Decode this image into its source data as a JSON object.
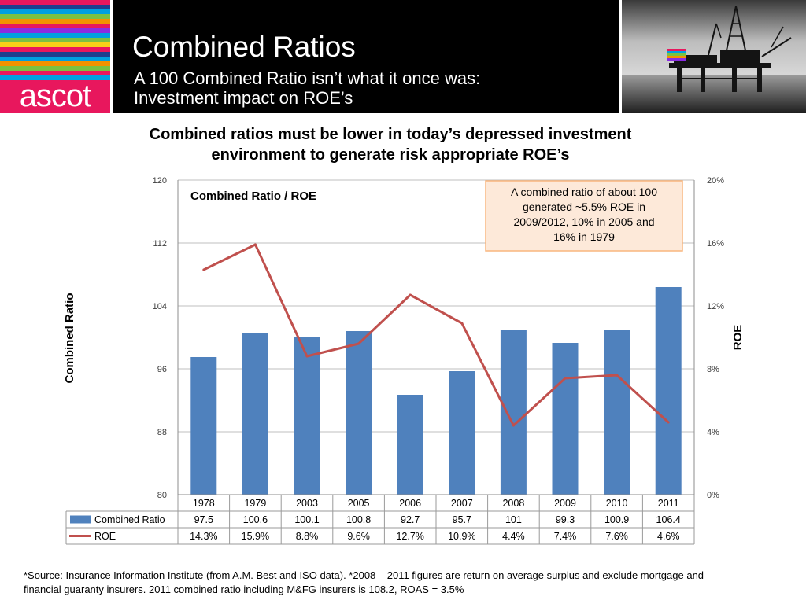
{
  "header": {
    "logo_text": "ascot",
    "title": "Combined Ratios",
    "subtitle_line1": "A 100 Combined Ratio isn’t what it once was:",
    "subtitle_line2": "Investment impact on ROE’s",
    "logo_stripe_colors": [
      "#e8175d",
      "#1e3f8f",
      "#00a0e0",
      "#7bc142",
      "#f39200",
      "#e8175d",
      "#8a2be2",
      "#00a0e0",
      "#7bc142",
      "#f7d117",
      "#e8175d",
      "#1e3f8f",
      "#00a0e0",
      "#f39200",
      "#7bc142",
      "#e8175d",
      "#00a0e0"
    ]
  },
  "headline": {
    "line1": "Combined ratios must be lower in today’s depressed investment",
    "line2": "environment to generate risk appropriate ROE’s"
  },
  "chart_data": {
    "type": "bar",
    "title": "Combined Ratio / ROE",
    "categories": [
      "1978",
      "1979",
      "2003",
      "2005",
      "2006",
      "2007",
      "2008",
      "2009",
      "2010",
      "2011"
    ],
    "series": [
      {
        "name": "Combined Ratio",
        "type": "bar",
        "axis": "left",
        "color": "#4f81bd",
        "values": [
          97.5,
          100.6,
          100.1,
          100.8,
          92.7,
          95.7,
          101,
          99.3,
          100.9,
          106.4
        ],
        "labels": [
          "97.5",
          "100.6",
          "100.1",
          "100.8",
          "92.7",
          "95.7",
          "101",
          "99.3",
          "100.9",
          "106.4"
        ]
      },
      {
        "name": "ROE",
        "type": "line",
        "axis": "right",
        "color": "#c0504d",
        "values": [
          14.3,
          15.9,
          8.8,
          9.6,
          12.7,
          10.9,
          4.4,
          7.4,
          7.6,
          4.6
        ],
        "labels": [
          "14.3%",
          "15.9%",
          "8.8%",
          "9.6%",
          "12.7%",
          "10.9%",
          "4.4%",
          "7.4%",
          "7.6%",
          "4.6%"
        ]
      }
    ],
    "y_left": {
      "label": "Combined Ratio",
      "min": 80,
      "max": 120,
      "ticks": [
        "80",
        "88",
        "96",
        "104",
        "112",
        "120"
      ]
    },
    "y_right": {
      "label": "ROE",
      "min": 0,
      "max": 20,
      "ticks": [
        "0%",
        "4%",
        "8%",
        "12%",
        "16%",
        "20%"
      ]
    },
    "grid": "horizontal",
    "data_table": true,
    "annotation": {
      "lines": [
        "A combined ratio of about 100",
        "generated ~5.5% ROE in",
        "2009/2012, 10% in 2005 and",
        "16% in 1979"
      ],
      "fill": "#fde9d9",
      "border": "#f9b67e"
    }
  },
  "footnote": {
    "line1": "*Source: Insurance Information Institute (from A.M. Best and ISO data). *2008 – 2011 figures are return on average surplus and exclude mortgage and",
    "line2": "financial guaranty insurers. 2011 combined ratio including M&FG insurers is 108.2, ROAS = 3.5%"
  }
}
